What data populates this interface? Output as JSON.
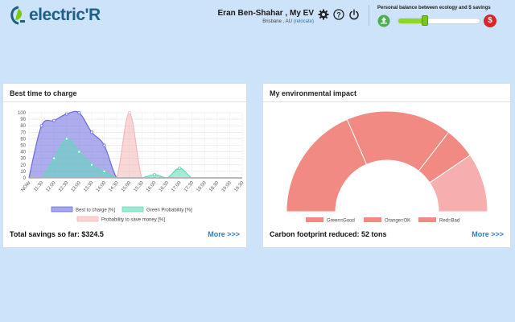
{
  "header": {
    "logo_text": "electric'R",
    "user_name": "Eran Ben-Shahar , My EV",
    "location": "Brisbane , AU",
    "relocate_label": "(relocate)",
    "icons": [
      "gear-icon",
      "help-icon",
      "power-icon"
    ],
    "balance_title": "Personal balance between ecology and $ savings",
    "balance_level_percent": 33,
    "balance_left_icon": "recycle-icon",
    "balance_right_symbol": "$"
  },
  "left_card": {
    "title": "Best time to charge",
    "footer": "Total savings so far: $324.5",
    "more": "More >>>"
  },
  "right_card": {
    "title": "My environmental impact",
    "footer": "Carbon footprint reduced: 52 tons",
    "more": "More >>>"
  },
  "chart_data": [
    {
      "type": "area",
      "title": "",
      "categories": [
        "NOW",
        "11:30",
        "12:00",
        "12:30",
        "13:00",
        "13:30",
        "14:00",
        "14:30",
        "15:00",
        "15:30",
        "16:00",
        "16:30",
        "17:00",
        "17:30",
        "18:00",
        "18:30",
        "19:00",
        "19:30"
      ],
      "ylim": [
        0,
        100
      ],
      "yticks": [
        0,
        10,
        20,
        30,
        40,
        50,
        60,
        70,
        80,
        90,
        100
      ],
      "grid": true,
      "legend_position": "bottom",
      "series": [
        {
          "name": "Best to charge [%]",
          "color": "#6a6ae0",
          "values": [
            0,
            80,
            88,
            98,
            100,
            70,
            50,
            0,
            0,
            0,
            0,
            0,
            0,
            0,
            0,
            0,
            0,
            0
          ]
        },
        {
          "name": "Green Probability [%]",
          "color": "#5fd9b8",
          "values": [
            0,
            0,
            30,
            60,
            40,
            20,
            10,
            0,
            0,
            0,
            5,
            0,
            15,
            0,
            0,
            0,
            0,
            0
          ]
        },
        {
          "name": "Probability to save money [%]",
          "color": "#f4b7b7",
          "values": [
            0,
            0,
            0,
            0,
            0,
            0,
            0,
            0,
            100,
            0,
            0,
            0,
            0,
            0,
            0,
            0,
            0,
            0
          ]
        }
      ]
    },
    {
      "type": "pie",
      "variant": "half-doughnut",
      "title": "",
      "legend_position": "bottom",
      "labels": [
        "Green=Good",
        "Orange=OK",
        "Red=Bad"
      ],
      "slices": [
        {
          "label": "Green=Good",
          "value": 37,
          "color": "#f28a84"
        },
        {
          "label": "Orange=OK",
          "value": 34,
          "color": "#f28a84"
        },
        {
          "label": "Red=Bad",
          "value": 29,
          "color": "#f7aeae"
        }
      ],
      "slice_order_drawn": [
        {
          "value": 37,
          "color": "#f28a84"
        },
        {
          "value": 34,
          "color": "#f28a84"
        },
        {
          "value": 10,
          "color": "#f28a84"
        },
        {
          "value": 19,
          "color": "#f7aeae"
        }
      ]
    }
  ]
}
